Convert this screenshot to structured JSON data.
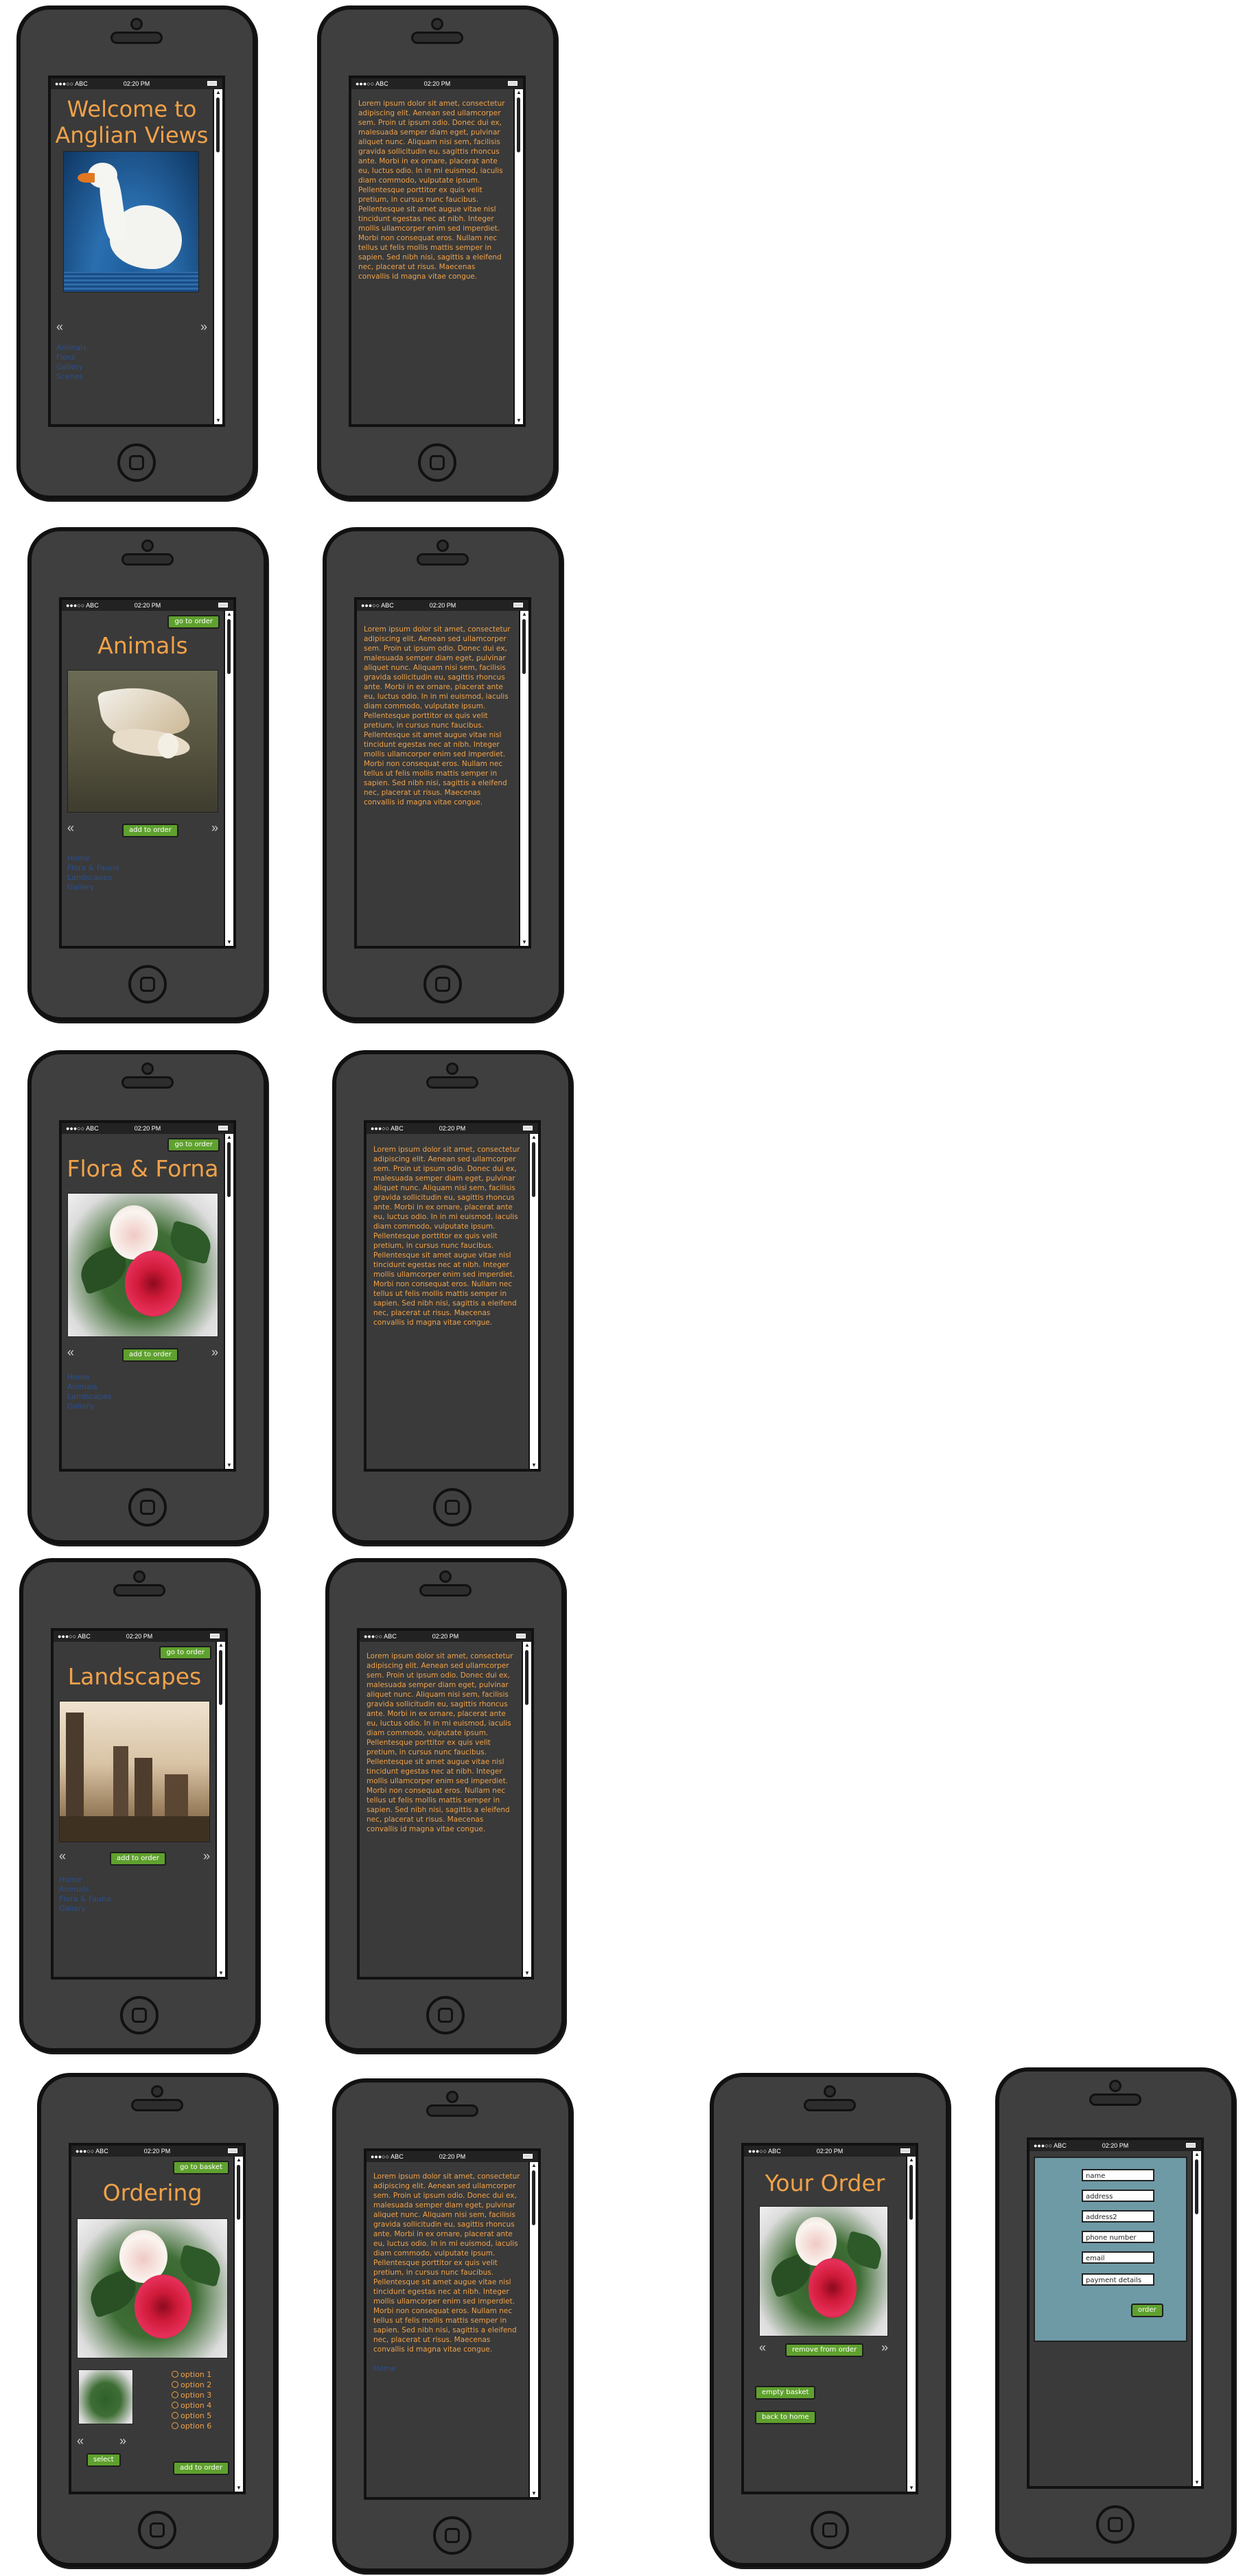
{
  "status": {
    "carrier": "●●●○○ ABC",
    "time": "02:20 PM"
  },
  "nav": {
    "prev": "«",
    "next": "»"
  },
  "lorem": "Lorem ipsum dolor sit amet, consectetur adipiscing elit. Aenean sed ullamcorper sem. Proin ut ipsum odio. Donec dui ex, malesuada semper diam eget, pulvinar aliquet nunc. Aliquam nisi sem, facilisis gravida sollicitudin eu, sagittis rhoncus ante. Morbi in ex ornare, placerat ante eu, luctus odio. In in mi euismod, iaculis diam commodo, vulputate ipsum. Pellentesque porttitor ex quis velit pretium, in cursus nunc faucibus. Pellentesque sit amet augue vitae nisl tincidunt egestas nec at nibh. Integer mollis ullamcorper enim sed imperdiet. Morbi non consequat eros. Nullam nec tellus ut felis mollis mattis semper in sapien. Sed nibh nisi, sagittis a eleifend nec, placerat ut risus. Maecenas convallis id magna vitae congue.",
  "screens": {
    "welcome": {
      "title": "Welcome to Anglian Views",
      "links": [
        "Animals",
        "Flora",
        "Gallery",
        "Scenes"
      ]
    },
    "animals": {
      "title": "Animals",
      "go_to_order": "go to order",
      "add_to_order": "add to order",
      "links": [
        "Home",
        "Flora & Fauna",
        "Landscapes",
        "Gallery"
      ]
    },
    "flora": {
      "title": "Flora & Forna",
      "go_to_order": "go to order",
      "add_to_order": "add to order",
      "links": [
        "Home",
        "Animals",
        "Landscapes",
        "Gallery"
      ]
    },
    "landscapes": {
      "title": "Landscapes",
      "go_to_order": "go to order",
      "add_to_order": "add to order",
      "links": [
        "Home",
        "Animals",
        "Flora & Fauna",
        "Gallery"
      ]
    },
    "ordering": {
      "title": "Ordering",
      "go_to_basket": "go to basket",
      "select": "select",
      "add_to_order": "add to order",
      "options": [
        "option 1",
        "option 2",
        "option 3",
        "option 4",
        "option 5",
        "option 6"
      ]
    },
    "ordering_text": {
      "link": "Home"
    },
    "your_order": {
      "title": "Your Order",
      "remove_from_order": "remove from order",
      "empty_basket": "empty basket",
      "back_to_home": "back to home"
    },
    "checkout": {
      "fields": [
        "name",
        "address",
        "address2",
        "phone number",
        "email",
        "payment details"
      ],
      "order": "order"
    }
  }
}
